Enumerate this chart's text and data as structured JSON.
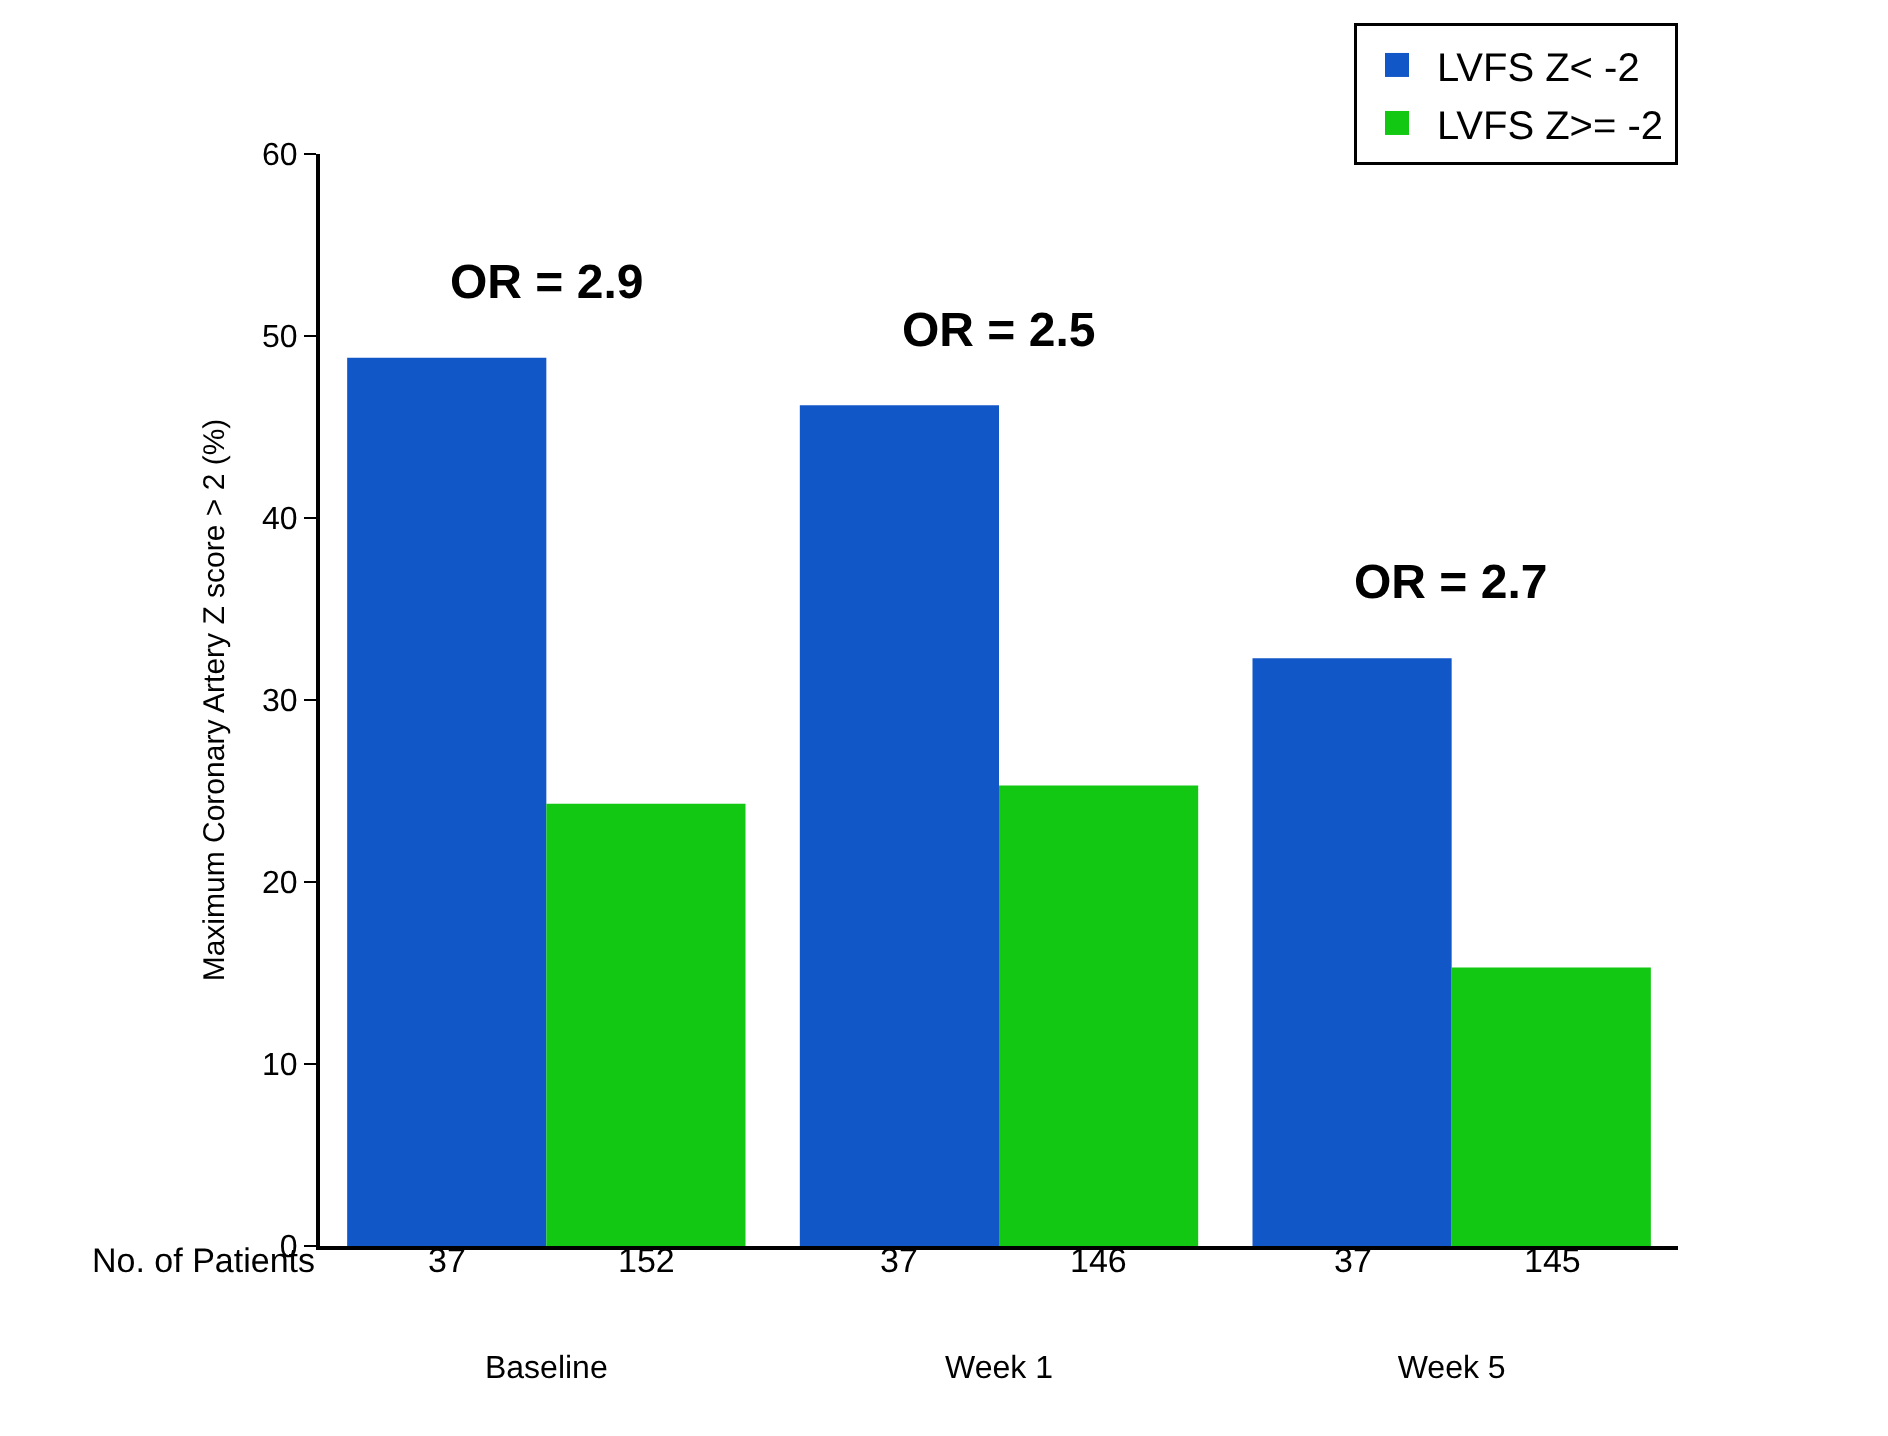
{
  "chart_data": {
    "type": "bar",
    "ylabel": "Maximum Coronary Artery Z score > 2 (%)",
    "categories": [
      "Baseline",
      "Week 1",
      "Week 5"
    ],
    "series": [
      {
        "name": "LVFS Z< -2",
        "color": "#1257c8",
        "values": [
          48.8,
          46.2,
          32.3
        ]
      },
      {
        "name": "LVFS Z>= -2",
        "color": "#12c812",
        "values": [
          24.3,
          25.3,
          15.3
        ]
      }
    ],
    "ylim": [
      0,
      60
    ],
    "yticks": [
      0,
      10,
      20,
      30,
      40,
      50,
      60
    ],
    "legend": "top right",
    "annotations": [
      "OR = 2.9",
      "OR = 2.5",
      "OR = 2.7",
      "No. of Patients",
      "37",
      "152",
      "37",
      "146",
      "37",
      "145"
    ]
  }
}
